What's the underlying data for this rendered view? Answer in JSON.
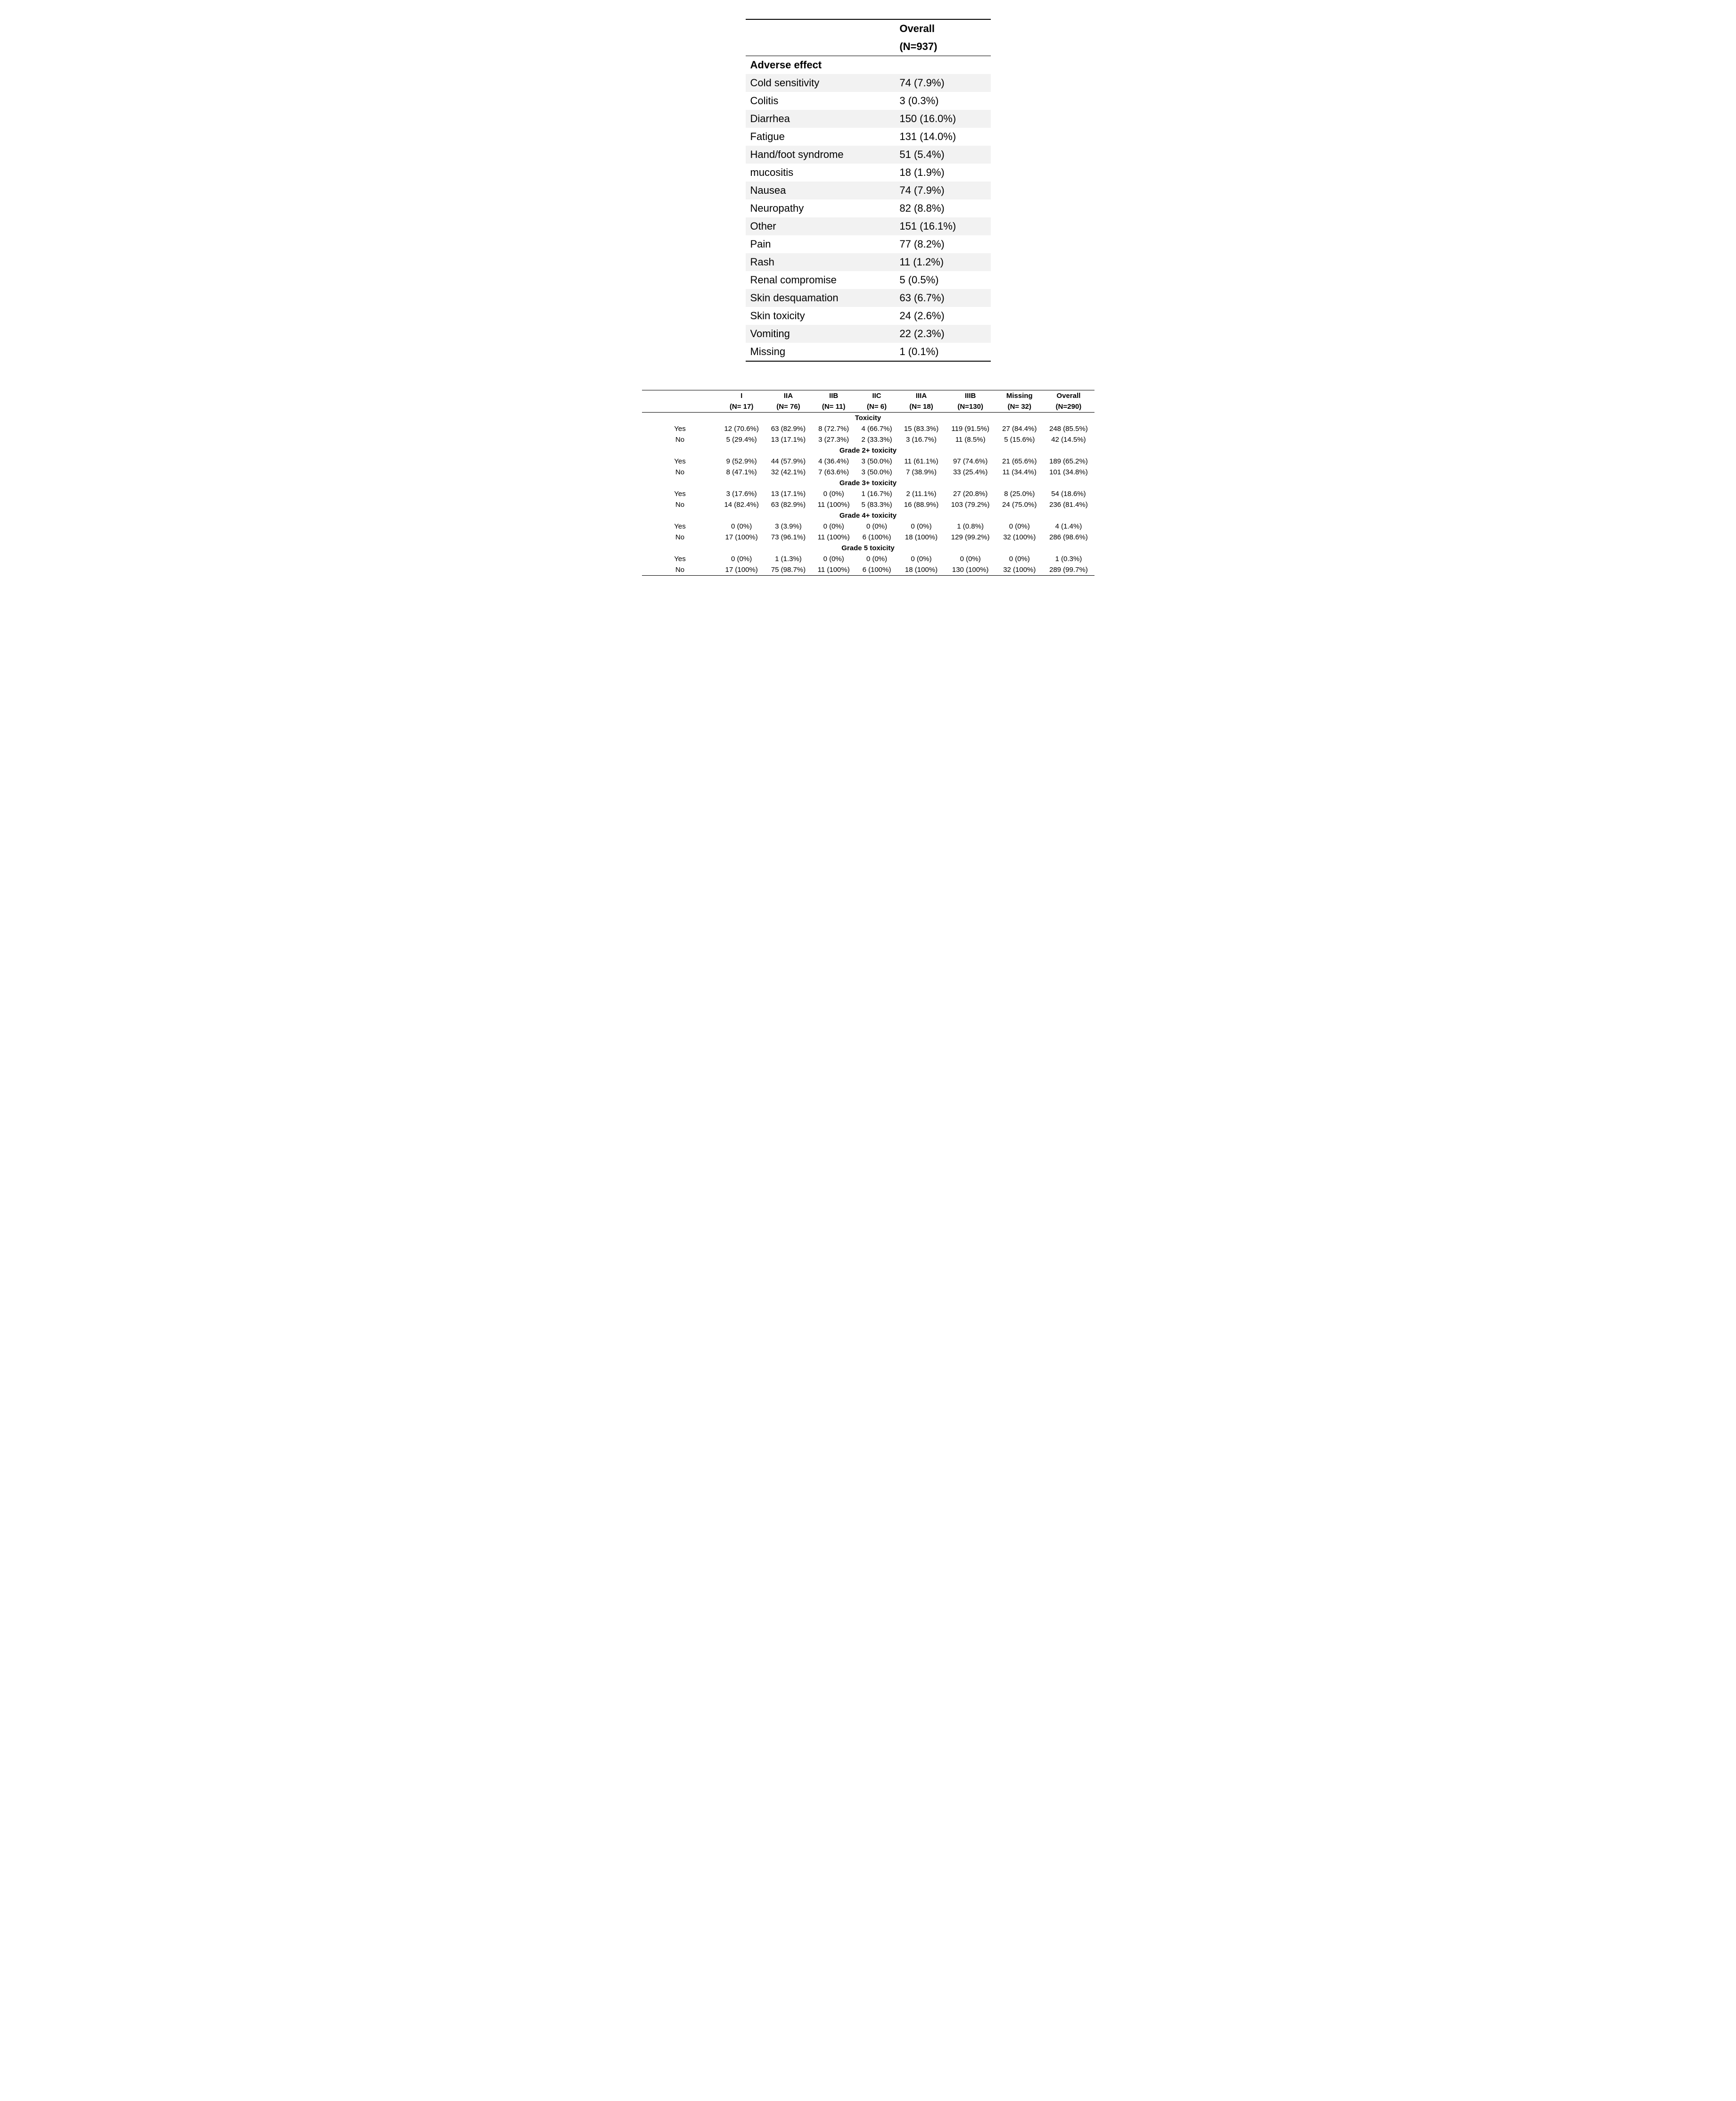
{
  "table1": {
    "header": {
      "line1": "Overall",
      "line2": "(N=937)"
    },
    "section_label": "Adverse effect",
    "rows": [
      {
        "label": "Cold sensitivity",
        "value": "74 (7.9%)"
      },
      {
        "label": "Colitis",
        "value": "3 (0.3%)"
      },
      {
        "label": "Diarrhea",
        "value": "150 (16.0%)"
      },
      {
        "label": "Fatigue",
        "value": "131 (14.0%)"
      },
      {
        "label": "Hand/foot syndrome",
        "value": "51 (5.4%)"
      },
      {
        "label": "mucositis",
        "value": "18 (1.9%)"
      },
      {
        "label": "Nausea",
        "value": "74 (7.9%)"
      },
      {
        "label": "Neuropathy",
        "value": "82 (8.8%)"
      },
      {
        "label": "Other",
        "value": "151 (16.1%)"
      },
      {
        "label": "Pain",
        "value": "77 (8.2%)"
      },
      {
        "label": "Rash",
        "value": "11 (1.2%)"
      },
      {
        "label": "Renal compromise",
        "value": "5 (0.5%)"
      },
      {
        "label": "Skin desquamation",
        "value": "63 (6.7%)"
      },
      {
        "label": "Skin toxicity",
        "value": "24 (2.6%)"
      },
      {
        "label": "Vomiting",
        "value": "22 (2.3%)"
      },
      {
        "label": "Missing",
        "value": "1 (0.1%)"
      }
    ],
    "stripe_colors": {
      "even": "#ffffff",
      "odd": "#f2f2f2"
    }
  },
  "table2": {
    "columns": [
      {
        "line1": "I",
        "line2": "(N= 17)"
      },
      {
        "line1": "IIA",
        "line2": "(N= 76)"
      },
      {
        "line1": "IIB",
        "line2": "(N= 11)"
      },
      {
        "line1": "IIC",
        "line2": "(N= 6)"
      },
      {
        "line1": "IIIA",
        "line2": "(N= 18)"
      },
      {
        "line1": "IIIB",
        "line2": "(N=130)"
      },
      {
        "line1": "Missing",
        "line2": "(N= 32)"
      },
      {
        "line1": "Overall",
        "line2": "(N=290)"
      }
    ],
    "sections": [
      {
        "label": "Toxicity",
        "rows": [
          {
            "label": "Yes",
            "cells": [
              "12 (70.6%)",
              "63 (82.9%)",
              "8 (72.7%)",
              "4 (66.7%)",
              "15 (83.3%)",
              "119 (91.5%)",
              "27 (84.4%)",
              "248 (85.5%)"
            ]
          },
          {
            "label": "No",
            "cells": [
              "5 (29.4%)",
              "13 (17.1%)",
              "3 (27.3%)",
              "2 (33.3%)",
              "3 (16.7%)",
              "11 (8.5%)",
              "5 (15.6%)",
              "42 (14.5%)"
            ]
          }
        ]
      },
      {
        "label": "Grade 2+ toxicity",
        "rows": [
          {
            "label": "Yes",
            "cells": [
              "9 (52.9%)",
              "44 (57.9%)",
              "4 (36.4%)",
              "3 (50.0%)",
              "11 (61.1%)",
              "97 (74.6%)",
              "21 (65.6%)",
              "189 (65.2%)"
            ]
          },
          {
            "label": "No",
            "cells": [
              "8 (47.1%)",
              "32 (42.1%)",
              "7 (63.6%)",
              "3 (50.0%)",
              "7 (38.9%)",
              "33 (25.4%)",
              "11 (34.4%)",
              "101 (34.8%)"
            ]
          }
        ]
      },
      {
        "label": "Grade 3+ toxicity",
        "rows": [
          {
            "label": "Yes",
            "cells": [
              "3 (17.6%)",
              "13 (17.1%)",
              "0 (0%)",
              "1 (16.7%)",
              "2 (11.1%)",
              "27 (20.8%)",
              "8 (25.0%)",
              "54 (18.6%)"
            ]
          },
          {
            "label": "No",
            "cells": [
              "14 (82.4%)",
              "63 (82.9%)",
              "11 (100%)",
              "5 (83.3%)",
              "16 (88.9%)",
              "103 (79.2%)",
              "24 (75.0%)",
              "236 (81.4%)"
            ]
          }
        ]
      },
      {
        "label": "Grade 4+ toxicity",
        "rows": [
          {
            "label": "Yes",
            "cells": [
              "0 (0%)",
              "3 (3.9%)",
              "0 (0%)",
              "0 (0%)",
              "0 (0%)",
              "1 (0.8%)",
              "0 (0%)",
              "4 (1.4%)"
            ]
          },
          {
            "label": "No",
            "cells": [
              "17 (100%)",
              "73 (96.1%)",
              "11 (100%)",
              "6 (100%)",
              "18 (100%)",
              "129 (99.2%)",
              "32 (100%)",
              "286 (98.6%)"
            ]
          }
        ]
      },
      {
        "label": "Grade 5 toxicity",
        "rows": [
          {
            "label": "Yes",
            "cells": [
              "0 (0%)",
              "1 (1.3%)",
              "0 (0%)",
              "0 (0%)",
              "0 (0%)",
              "0 (0%)",
              "0 (0%)",
              "1 (0.3%)"
            ]
          },
          {
            "label": "No",
            "cells": [
              "17 (100%)",
              "75 (98.7%)",
              "11 (100%)",
              "6 (100%)",
              "18 (100%)",
              "130 (100%)",
              "32 (100%)",
              "289 (99.7%)"
            ]
          }
        ]
      }
    ]
  }
}
